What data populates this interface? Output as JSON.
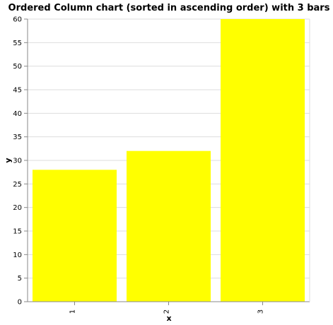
{
  "chart_data": {
    "type": "bar",
    "title": "Ordered Column chart (sorted in ascending order) with 3 bars",
    "xlabel": "x",
    "ylabel": "y",
    "categories": [
      "1",
      "2",
      "3"
    ],
    "values": [
      28,
      32,
      60
    ],
    "ylim": [
      0,
      60
    ],
    "y_ticks": [
      0,
      5,
      10,
      15,
      20,
      25,
      30,
      35,
      40,
      45,
      50,
      55,
      60
    ],
    "grid": true,
    "legend": "none",
    "bar_color": "#ffff00",
    "grid_color": "#dddddd",
    "axis_color": "#888888"
  }
}
